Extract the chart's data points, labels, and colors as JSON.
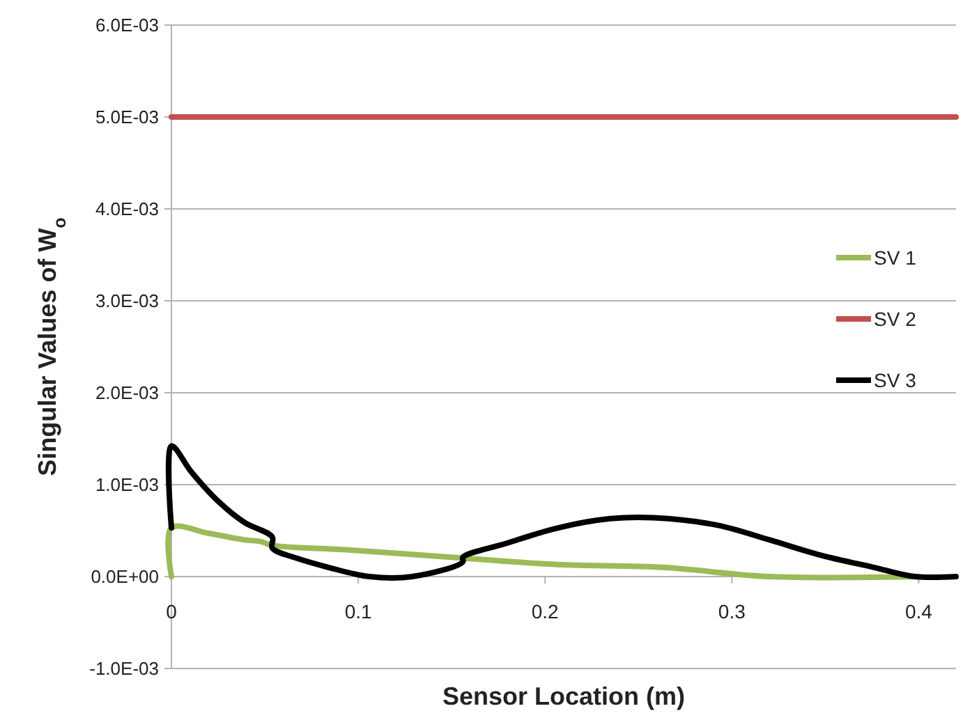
{
  "chart_data": {
    "type": "line",
    "xlabel": "Sensor Location (m)",
    "ylabel": "Singular Values of W$_{o}$",
    "xlim": [
      0,
      0.42
    ],
    "xticks": [
      0,
      0.1,
      0.2,
      0.3,
      0.4
    ],
    "ylim": [
      -0.001,
      0.006
    ],
    "yticks": [
      {
        "value": -0.001,
        "label": "-1.0E-03"
      },
      {
        "value": 0,
        "label": "0.0E+00"
      },
      {
        "value": 0.001,
        "label": "1.0E-03"
      },
      {
        "value": 0.002,
        "label": "2.0E-03"
      },
      {
        "value": 0.003,
        "label": "3.0E-03"
      },
      {
        "value": 0.004,
        "label": "4.0E-03"
      },
      {
        "value": 0.005,
        "label": "5.0E-03"
      },
      {
        "value": 0.006,
        "label": "6.0E-03"
      }
    ],
    "grid": "y",
    "legend": "right",
    "line_style": "solid",
    "series": [
      {
        "name": "SV 1",
        "color": "#9bbb59",
        "x": [
          0,
          0,
          0.02,
          0.039,
          0.048,
          0.054,
          0.095,
          0.156,
          0.207,
          0.263,
          0.32,
          0.4
        ],
        "values": [
          0,
          0.00053,
          0.00047,
          0.0004,
          0.00038,
          0.00034,
          0.00029,
          0.0002,
          0.00013,
          0.0001,
          0,
          0
        ]
      },
      {
        "name": "SV 2",
        "color": "#c0504d",
        "x": [
          0,
          0.42
        ],
        "values": [
          0.005,
          0.005
        ]
      },
      {
        "name": "SV 3",
        "color": "#000000",
        "x": [
          0,
          0,
          0.011,
          0.025,
          0.039,
          0.054,
          0.054,
          0.067,
          0.084,
          0.106,
          0.129,
          0.156,
          0.156,
          0.179,
          0.207,
          0.235,
          0.258,
          0.292,
          0.32,
          0.348,
          0.376,
          0.398,
          0.42
        ],
        "values": [
          0.00053,
          0.00142,
          0.00113,
          0.00082,
          0.00059,
          0.00043,
          0.00031,
          0.0002,
          0.0001,
          0,
          0,
          0.00016,
          0.00021,
          0.00036,
          0.00053,
          0.00063,
          0.00064,
          0.00056,
          0.0004,
          0.00023,
          0.0001,
          0,
          0
        ]
      }
    ]
  }
}
